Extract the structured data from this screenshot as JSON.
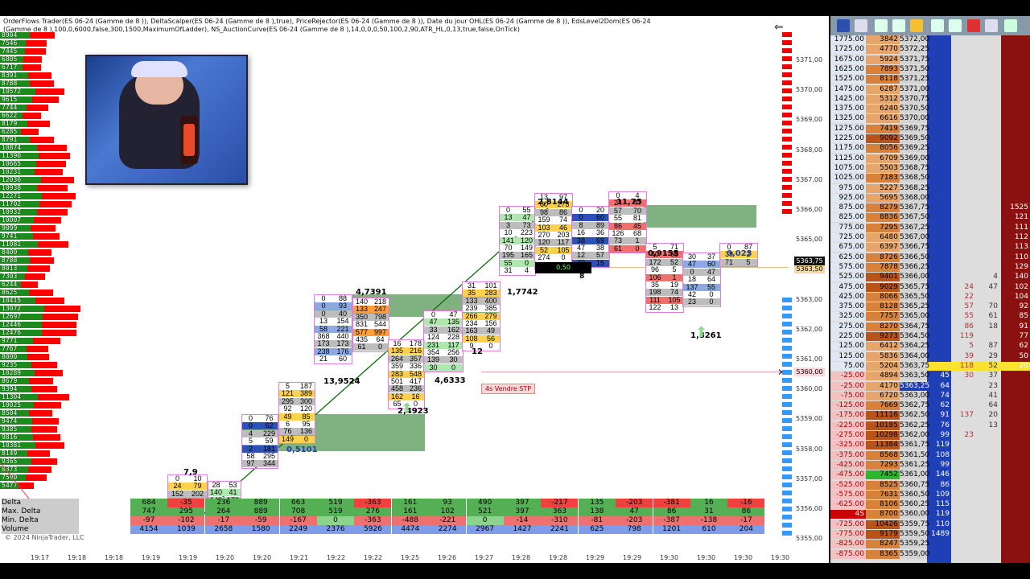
{
  "indicator_text": "OrderFlows Trader(ES 06-24 (Gamme de 8 )), DeltaScalper(ES 06-24 (Gamme de 8 ),true), PriceRejector(ES 06-24 (Gamme de 8 )), Date du jour OHL(ES 06-24 (Gamme de 8 )), EdsLevel2Dom(ES 06-24 (Gamme de 8 ),100,0,6000,false,300,1500,MaximumOfLadder), NS_AuctionCurve(ES 06-24 (Gamme de 8 ),14,0,0,0,50,100,2,90,ATR_HL,0,13,true,false,OnTick)",
  "copyright": "© 2024 NinjaTrader, LLC",
  "left_profile": [
    "8904",
    "7546",
    "7445",
    "6805",
    "6717",
    "8391",
    "8788",
    "10572",
    "9615",
    "7744",
    "6622",
    "8179",
    "6285",
    "8791",
    "10874",
    "11390",
    "10665",
    "10231",
    "12036",
    "10938",
    "12271",
    "11702",
    "10932",
    "10007",
    "9099",
    "9741",
    "11081",
    "8400",
    "8788",
    "8013",
    "7303",
    "6244",
    "8625",
    "10415",
    "13072",
    "12697",
    "12446",
    "12476",
    "9771",
    "7767",
    "8000",
    "9235",
    "10289",
    "8679",
    "9394",
    "11304",
    "10025",
    "8504",
    "9474",
    "9385",
    "9816",
    "10381",
    "8149",
    "9365",
    "8373",
    "7590",
    "5477"
  ],
  "price_axis": [
    "5371,00",
    "5370,00",
    "5369,00",
    "5368,00",
    "5367,00",
    "5366,00",
    "5365,00",
    "5364,00",
    "5363,00",
    "5362,00",
    "5361,00",
    "5360,00",
    "5359,00",
    "5358,00",
    "5357,00",
    "5356,00",
    "5355,00"
  ],
  "price_axis_highlights": {
    "current": "5363,75",
    "marker": "5363,50"
  },
  "time_axis": [
    "19:17",
    "19:18",
    "19:18",
    "19:19",
    "19:19",
    "19:20",
    "19:20",
    "19:21",
    "19:22",
    "19:22",
    "19:25",
    "19:26",
    "19:27",
    "19:28",
    "19:28",
    "19:29",
    "19:29",
    "19:30",
    "19:30",
    "19:30",
    "19:30"
  ],
  "bar_labels": [
    {
      "text": "7,9"
    },
    {
      "text": "0,5101"
    },
    {
      "text": "13,9524"
    },
    {
      "text": "4,7391"
    },
    {
      "text": "2,4923"
    },
    {
      "text": "4,6333"
    },
    {
      "text": "12"
    },
    {
      "text": "1,7742"
    },
    {
      "text": "2,8144"
    },
    {
      "text": "11,75"
    },
    {
      "text": "0,9155"
    },
    {
      "text": "0,023"
    },
    {
      "text": "1,8261"
    }
  ],
  "order_label": "4s  Vendre STP",
  "black_box_value": "0,50",
  "black_box_side": "8",
  "stats": {
    "labels": [
      "Delta",
      "Max. Delta",
      "Min. Delta",
      "Volume"
    ],
    "delta": [
      "684",
      "-35",
      "236",
      "889",
      "663",
      "519",
      "-363",
      "161",
      "93",
      "490",
      "397",
      "-217",
      "135",
      "-203",
      "-381",
      "16",
      "-16"
    ],
    "max_delta": [
      "747",
      "295",
      "264",
      "889",
      "708",
      "519",
      "276",
      "161",
      "102",
      "521",
      "397",
      "363",
      "138",
      "47",
      "86",
      "31",
      "86"
    ],
    "min_delta": [
      "-97",
      "-102",
      "-17",
      "-59",
      "-167",
      "0",
      "-363",
      "-488",
      "-221",
      "0",
      "-14",
      "-310",
      "-81",
      "-203",
      "-387",
      "-138",
      "-17"
    ],
    "volume": [
      "4154",
      "1039",
      "2658",
      "1580",
      "2249",
      "2376",
      "5926",
      "4474",
      "2274",
      "2967",
      "1427",
      "2241",
      "625",
      "798",
      "1201",
      "610",
      "204"
    ]
  },
  "dom": {
    "rows": [
      {
        "p": "1775.00",
        "v": "3842",
        "pr": "5372,00",
        "b": "",
        "a": "",
        "x": "",
        "y": "",
        "z": ""
      },
      {
        "p": "1725.00",
        "v": "4770",
        "pr": "5372,25",
        "b": "",
        "a": "",
        "x": "",
        "y": "",
        "z": ""
      },
      {
        "p": "1675.00",
        "v": "5924",
        "pr": "5371,75",
        "b": "",
        "a": "",
        "x": "",
        "y": "",
        "z": ""
      },
      {
        "p": "1625.00",
        "v": "7893",
        "pr": "5371,50",
        "b": "",
        "a": "",
        "x": "",
        "y": "",
        "z": ""
      },
      {
        "p": "1525.00",
        "v": "8118",
        "pr": "5371,25",
        "b": "",
        "a": "",
        "x": "",
        "y": "",
        "z": ""
      },
      {
        "p": "1475.00",
        "v": "6287",
        "pr": "5371,00",
        "b": "",
        "a": "",
        "x": "",
        "y": "",
        "z": ""
      },
      {
        "p": "1425.00",
        "v": "5312",
        "pr": "5370,75",
        "b": "",
        "a": "",
        "x": "",
        "y": "",
        "z": ""
      },
      {
        "p": "1375.00",
        "v": "6240",
        "pr": "5370,50",
        "b": "",
        "a": "",
        "x": "",
        "y": "",
        "z": ""
      },
      {
        "p": "1325.00",
        "v": "6616",
        "pr": "5370,00",
        "b": "",
        "a": "",
        "x": "",
        "y": "",
        "z": ""
      },
      {
        "p": "1275.00",
        "v": "7419",
        "pr": "5369,75",
        "b": "",
        "a": "",
        "x": "",
        "y": "",
        "z": ""
      },
      {
        "p": "1225.00",
        "v": "9092",
        "pr": "5369,50",
        "b": "",
        "a": "",
        "x": "",
        "y": "",
        "z": ""
      },
      {
        "p": "1175.00",
        "v": "8056",
        "pr": "5369,25",
        "b": "",
        "a": "",
        "x": "",
        "y": "",
        "z": ""
      },
      {
        "p": "1125.00",
        "v": "6709",
        "pr": "5369,00",
        "b": "",
        "a": "",
        "x": "",
        "y": "",
        "z": ""
      },
      {
        "p": "1075.00",
        "v": "5503",
        "pr": "5368,75",
        "b": "",
        "a": "",
        "x": "",
        "y": "",
        "z": ""
      },
      {
        "p": "1025.00",
        "v": "7183",
        "pr": "5368,50",
        "b": "",
        "a": "",
        "x": "",
        "y": "",
        "z": ""
      },
      {
        "p": "975.00",
        "v": "5227",
        "pr": "5368,25",
        "b": "",
        "a": "",
        "x": "",
        "y": "",
        "z": ""
      },
      {
        "p": "925.00",
        "v": "5695",
        "pr": "5368,00",
        "b": "",
        "a": "",
        "x": "",
        "y": "",
        "z": ""
      },
      {
        "p": "875.00",
        "v": "8279",
        "pr": "5367,75",
        "b": "",
        "a": "",
        "x": "",
        "y": "",
        "z": "1525"
      },
      {
        "p": "825.00",
        "v": "8836",
        "pr": "5367,50",
        "b": "",
        "a": "",
        "x": "",
        "y": "",
        "z": "121"
      },
      {
        "p": "775.00",
        "v": "7295",
        "pr": "5367,25",
        "b": "",
        "a": "",
        "x": "",
        "y": "",
        "z": "111"
      },
      {
        "p": "725.00",
        "v": "6480",
        "pr": "5367,00",
        "b": "",
        "a": "",
        "x": "",
        "y": "",
        "z": "112"
      },
      {
        "p": "675.00",
        "v": "6397",
        "pr": "5366,75",
        "b": "",
        "a": "",
        "x": "",
        "y": "",
        "z": "113"
      },
      {
        "p": "625.00",
        "v": "8726",
        "pr": "5366,50",
        "b": "",
        "a": "",
        "x": "",
        "y": "",
        "z": "110"
      },
      {
        "p": "575.00",
        "v": "7878",
        "pr": "5366,25",
        "b": "",
        "a": "",
        "x": "",
        "y": "",
        "z": "129"
      },
      {
        "p": "525.00",
        "v": "9401",
        "pr": "5366,00",
        "b": "",
        "a": "",
        "x": "",
        "y": "4",
        "z": "140"
      },
      {
        "p": "475.00",
        "v": "9029",
        "pr": "5365,75",
        "b": "",
        "a": "",
        "x": "24",
        "y": "47",
        "z": "102"
      },
      {
        "p": "425.00",
        "v": "8066",
        "pr": "5365,50",
        "b": "",
        "a": "",
        "x": "22",
        "y": "",
        "z": "104"
      },
      {
        "p": "375.00",
        "v": "8128",
        "pr": "5365,25",
        "b": "",
        "a": "",
        "x": "57",
        "y": "70",
        "z": "92"
      },
      {
        "p": "325.00",
        "v": "7757",
        "pr": "5365,00",
        "b": "",
        "a": "",
        "x": "55",
        "y": "61",
        "z": "85"
      },
      {
        "p": "275.00",
        "v": "8270",
        "pr": "5364,75",
        "b": "",
        "a": "",
        "x": "86",
        "y": "18",
        "z": "91"
      },
      {
        "p": "225.00",
        "v": "9273",
        "pr": "5364,50",
        "b": "",
        "a": "",
        "x": "119",
        "y": "",
        "z": "77"
      },
      {
        "p": "125.00",
        "v": "6412",
        "pr": "5364,25",
        "b": "",
        "a": "",
        "x": "5",
        "y": "87",
        "z": "62"
      },
      {
        "p": "125.00",
        "v": "5836",
        "pr": "5364,00",
        "b": "",
        "a": "",
        "x": "39",
        "y": "29",
        "z": "50"
      },
      {
        "p": "75.00",
        "v": "5204",
        "pr": "5363,75",
        "b": "",
        "a": "",
        "x": "118",
        "y": "52",
        "z": "26",
        "hl": true
      },
      {
        "p": "-25.00",
        "v": "4894",
        "pr": "5363,50",
        "b": "45",
        "a": "",
        "x": "30",
        "y": "37",
        "z": ""
      },
      {
        "p": "-25.00",
        "v": "4170",
        "pr": "5363,25",
        "b": "64",
        "a": "",
        "x": "",
        "y": "23",
        "z": "",
        "cur": true
      },
      {
        "p": "-75.00",
        "v": "6720",
        "pr": "5363,00",
        "b": "74",
        "a": "",
        "x": "",
        "y": "41",
        "z": ""
      },
      {
        "p": "-125.00",
        "v": "7669",
        "pr": "5362,75",
        "b": "62",
        "a": "",
        "x": "",
        "y": "64",
        "z": ""
      },
      {
        "p": "-175.00",
        "v": "11116",
        "pr": "5362,50",
        "b": "91",
        "a": "",
        "x": "137",
        "y": "20",
        "z": ""
      },
      {
        "p": "-225.00",
        "v": "10185",
        "pr": "5362,25",
        "b": "76",
        "a": "",
        "x": "",
        "y": "13",
        "z": ""
      },
      {
        "p": "-275.00",
        "v": "10298",
        "pr": "5362,00",
        "b": "99",
        "a": "",
        "x": "23",
        "y": "",
        "z": ""
      },
      {
        "p": "-325.00",
        "v": "11384",
        "pr": "5361,75",
        "b": "119",
        "a": "",
        "x": "",
        "y": "",
        "z": ""
      },
      {
        "p": "-375.00",
        "v": "8568",
        "pr": "5361,50",
        "b": "108",
        "a": "",
        "x": "",
        "y": "",
        "z": ""
      },
      {
        "p": "-425.00",
        "v": "7293",
        "pr": "5361,25",
        "b": "99",
        "a": "",
        "x": "",
        "y": "",
        "z": ""
      },
      {
        "p": "-475.00",
        "v": "7452",
        "pr": "5361,00",
        "b": "146",
        "a": "",
        "x": "",
        "y": "",
        "z": ""
      },
      {
        "p": "-525.00",
        "v": "8525",
        "pr": "5360,75",
        "b": "86",
        "a": "",
        "x": "",
        "y": "",
        "z": ""
      },
      {
        "p": "-575.00",
        "v": "7631",
        "pr": "5360,50",
        "b": "109",
        "a": "",
        "x": "",
        "y": "",
        "z": ""
      },
      {
        "p": "-625.00",
        "v": "8106",
        "pr": "5360,25",
        "b": "115",
        "a": "",
        "x": "",
        "y": "",
        "z": ""
      },
      {
        "p": "4S",
        "v": "8700",
        "pr": "5360,00",
        "b": "119",
        "a": "",
        "x": "",
        "y": "",
        "z": ""
      },
      {
        "p": "-725.00",
        "v": "10426",
        "pr": "5359,75",
        "b": "110",
        "a": "",
        "x": "",
        "y": "",
        "z": ""
      },
      {
        "p": "-775.00",
        "v": "9179",
        "pr": "5359,50",
        "b": "1489",
        "a": "",
        "x": "",
        "y": "",
        "z": ""
      },
      {
        "p": "-825.00",
        "v": "8247",
        "pr": "5359,25",
        "b": "",
        "a": "",
        "x": "",
        "y": "",
        "z": ""
      },
      {
        "p": "-875.00",
        "v": "8365",
        "pr": "5359,00",
        "b": "",
        "a": "",
        "x": "",
        "y": "",
        "z": ""
      }
    ]
  },
  "colors": {
    "bid": "#1f3fb5",
    "ask": "#a31515",
    "green": "#1c8a1c",
    "red": "#ff0000",
    "volume_orange": "#c8742a"
  }
}
